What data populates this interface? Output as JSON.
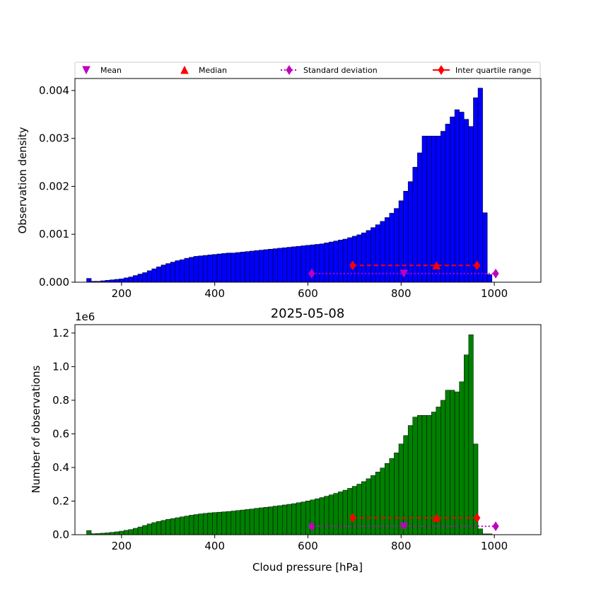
{
  "figure": {
    "title": "2025-05-08"
  },
  "legend": {
    "items": [
      {
        "label": "Mean",
        "marker": "triangle-down",
        "color": "#bf00bf",
        "line": "none"
      },
      {
        "label": "Median",
        "marker": "triangle-up",
        "color": "#ff0000",
        "line": "none"
      },
      {
        "label": "Standard deviation",
        "marker": "diamond",
        "color": "#bf00bf",
        "line": "dotted"
      },
      {
        "label": "Inter quartile range",
        "marker": "diamond",
        "color": "#ff0000",
        "line": "solid"
      }
    ]
  },
  "chart_data": [
    {
      "type": "bar",
      "panel": "top",
      "color": "#0000ff",
      "xlabel": "",
      "ylabel": "Observation density",
      "xlim": [
        100,
        1100
      ],
      "ylim": [
        0,
        0.00425
      ],
      "xticks": [
        200,
        400,
        600,
        800,
        1000
      ],
      "yticks": [
        0.0,
        0.001,
        0.002,
        0.003,
        0.004
      ],
      "ytick_labels": [
        "0.000",
        "0.001",
        "0.002",
        "0.003",
        "0.004"
      ],
      "bin_start": 125,
      "bin_width": 10,
      "values": [
        8e-05,
        2e-05,
        2e-05,
        3e-05,
        4e-05,
        5e-05,
        6e-05,
        7e-05,
        9e-05,
        0.00011,
        0.00014,
        0.00017,
        0.0002,
        0.00024,
        0.00028,
        0.00032,
        0.00036,
        0.00039,
        0.00042,
        0.00045,
        0.00047,
        0.0005,
        0.00052,
        0.00054,
        0.00055,
        0.00056,
        0.00057,
        0.00058,
        0.00059,
        0.0006,
        0.00061,
        0.00061,
        0.00062,
        0.00063,
        0.00064,
        0.00065,
        0.00066,
        0.00067,
        0.00068,
        0.00069,
        0.0007,
        0.00071,
        0.00072,
        0.00073,
        0.00074,
        0.00075,
        0.00076,
        0.00077,
        0.00078,
        0.00079,
        0.0008,
        0.00082,
        0.00084,
        0.00086,
        0.00088,
        0.0009,
        0.00093,
        0.00096,
        0.00099,
        0.00103,
        0.00108,
        0.00114,
        0.0012,
        0.00127,
        0.00135,
        0.00144,
        0.00154,
        0.0017,
        0.0019,
        0.0021,
        0.0024,
        0.0027,
        0.00305,
        0.00305,
        0.00305,
        0.00305,
        0.00315,
        0.0033,
        0.00345,
        0.0036,
        0.00355,
        0.0034,
        0.00325,
        0.00385,
        0.00405,
        0.00145,
        0.00016
      ],
      "stats": [
        {
          "name": "Standard deviation",
          "x": [
            608,
            1003
          ],
          "y": 0.00018
        },
        {
          "name": "Mean",
          "x": 806,
          "y": 0.00018
        },
        {
          "name": "Inter quartile range",
          "x": [
            696,
            963
          ],
          "y": 0.00035
        },
        {
          "name": "Median",
          "x": 876,
          "y": 0.00035
        }
      ]
    },
    {
      "type": "bar",
      "panel": "bottom",
      "color": "#008000",
      "xlabel": "Cloud pressure [hPa]",
      "ylabel": "Number of observations",
      "xlim": [
        100,
        1100
      ],
      "ylim": [
        0,
        1250000
      ],
      "xticks": [
        200,
        400,
        600,
        800,
        1000
      ],
      "yticks": [
        0,
        200000,
        400000,
        600000,
        800000,
        1000000,
        1200000
      ],
      "ytick_labels": [
        "0.0",
        "0.2",
        "0.4",
        "0.6",
        "0.8",
        "1.0",
        "1.2"
      ],
      "offset_text": "1e6",
      "bin_start": 125,
      "bin_width": 10,
      "values": [
        25000,
        6000,
        7000,
        9000,
        11000,
        14000,
        17000,
        21000,
        26000,
        31000,
        38000,
        46000,
        55000,
        64000,
        72000,
        79000,
        85000,
        91000,
        96000,
        101000,
        106000,
        111000,
        116000,
        120000,
        124000,
        127000,
        130000,
        132000,
        134000,
        136000,
        138000,
        141000,
        144000,
        147000,
        150000,
        153000,
        157000,
        160000,
        163000,
        166000,
        170000,
        173000,
        177000,
        181000,
        185000,
        190000,
        195000,
        201000,
        207000,
        214000,
        221000,
        229000,
        237000,
        246000,
        255000,
        265000,
        276000,
        288000,
        301000,
        316000,
        333000,
        352000,
        373000,
        397000,
        424000,
        454000,
        487000,
        540000,
        590000,
        650000,
        700000,
        710000,
        710000,
        710000,
        730000,
        760000,
        800000,
        860000,
        860000,
        850000,
        910000,
        1070000,
        1190000,
        540000,
        35000,
        5000,
        5000
      ],
      "stats": [
        {
          "name": "Standard deviation",
          "x": [
            608,
            1003
          ],
          "y": 50000
        },
        {
          "name": "Mean",
          "x": 806,
          "y": 50000
        },
        {
          "name": "Inter quartile range",
          "x": [
            696,
            963
          ],
          "y": 100000
        },
        {
          "name": "Median",
          "x": 876,
          "y": 100000
        }
      ]
    }
  ]
}
